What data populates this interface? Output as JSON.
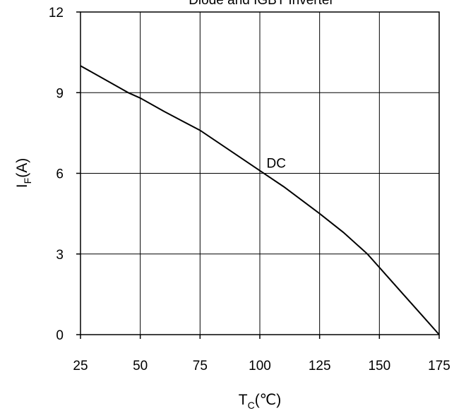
{
  "chart_data": {
    "type": "line",
    "title": "Diode and IGBT Inverter",
    "xlabel": {
      "main": "T",
      "sub": "C",
      "unit": "(℃)"
    },
    "ylabel": {
      "main": "I",
      "sub": "F",
      "unit": "(A)"
    },
    "xlim": [
      25,
      175
    ],
    "ylim": [
      0,
      12
    ],
    "xticks": [
      25,
      50,
      75,
      100,
      125,
      150,
      175
    ],
    "yticks": [
      0,
      3,
      6,
      9,
      12
    ],
    "xtick_labels": [
      "25",
      "50",
      "75",
      "100",
      "125",
      "150",
      "175"
    ],
    "ytick_labels": [
      "0",
      "3",
      "6",
      "9",
      "12"
    ],
    "grid": true,
    "series": [
      {
        "x": [
          25,
          35,
          45,
          50,
          60,
          75,
          90,
          100,
          110,
          125,
          135,
          145,
          152,
          160,
          168,
          175
        ],
        "y": [
          10.0,
          9.5,
          9.0,
          8.8,
          8.3,
          7.6,
          6.7,
          6.1,
          5.5,
          4.5,
          3.8,
          3.0,
          2.3,
          1.5,
          0.7,
          0.0
        ]
      }
    ],
    "annotations": [
      {
        "text": "DC",
        "x": 104,
        "y": 6.1
      }
    ]
  }
}
